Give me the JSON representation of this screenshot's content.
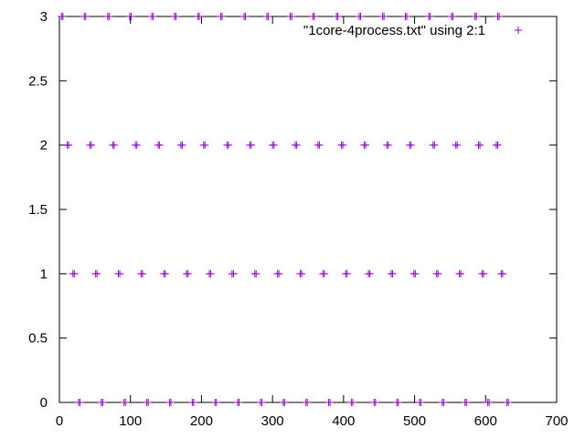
{
  "chart_data": {
    "type": "scatter",
    "title": "",
    "xlabel": "",
    "ylabel": "",
    "xlim": [
      0,
      700
    ],
    "ylim": [
      0,
      3
    ],
    "x_ticks": [
      "0",
      "100",
      "200",
      "300",
      "400",
      "500",
      "600",
      "700"
    ],
    "y_ticks": [
      "0",
      "0.5",
      "1",
      "1.5",
      "2",
      "2.5",
      "3"
    ],
    "grid": false,
    "legend_position": "top-right",
    "marker": "+",
    "color": "#9400d3",
    "series": [
      {
        "name": "\"1core-4process.txt\" using 2:1",
        "points": [
          {
            "y": 3,
            "x": [
              3,
              5,
              35,
              37,
              68,
              70,
              99,
              101,
              130,
              132,
              162,
              164,
              195,
              197,
              227,
              229,
              260,
              262,
              292,
              294,
              325,
              327,
              357,
              359,
              390,
              392,
              422,
              424,
              455,
              457,
              487,
              489,
              520,
              522,
              552,
              554,
              585,
              587,
              617,
              619
            ]
          },
          {
            "y": 2,
            "x": [
              11,
              13,
              43,
              45,
              75,
              77,
              107,
              109,
              139,
              141,
              171,
              173,
              203,
              205,
              236,
              238,
              268,
              270,
              300,
              302,
              332,
              334,
              364,
              366,
              397,
              399,
              429,
              431,
              461,
              463,
              493,
              495,
              526,
              528,
              558,
              560,
              590,
              592,
              615,
              617
            ]
          },
          {
            "y": 1,
            "x": [
              19,
              21,
              51,
              53,
              83,
              85,
              115,
              117,
              147,
              149,
              179,
              181,
              211,
              213,
              243,
              245,
              275,
              277,
              307,
              309,
              339,
              341,
              371,
              373,
              403,
              405,
              435,
              437,
              467,
              469,
              499,
              501,
              531,
              533,
              563,
              565,
              595,
              597,
              622,
              624
            ]
          },
          {
            "y": 0,
            "x": [
              27,
              29,
              59,
              61,
              91,
              93,
              123,
              125,
              155,
              157,
              187,
              189,
              219,
              221,
              251,
              253,
              283,
              285,
              315,
              317,
              347,
              349,
              379,
              381,
              411,
              413,
              443,
              445,
              475,
              477,
              507,
              509,
              539,
              541,
              571,
              573,
              603,
              605,
              630,
              632
            ]
          }
        ]
      }
    ]
  }
}
